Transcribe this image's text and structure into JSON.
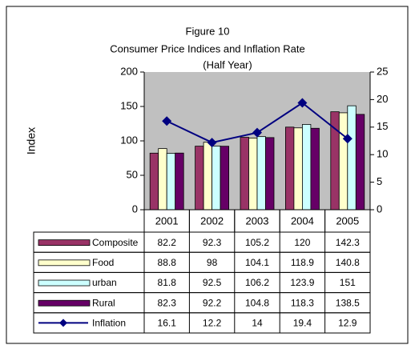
{
  "chart_data": {
    "type": "bar",
    "title": "Figure 10",
    "subtitle": "Consumer Price Indices and Inflation Rate",
    "period_label": "(Half Year)",
    "ylabel": "Index",
    "categories": [
      "2001",
      "2002",
      "2003",
      "2004",
      "2005"
    ],
    "series": [
      {
        "name": "Composite",
        "color": "#993366",
        "values": [
          82.2,
          92.3,
          105.2,
          120,
          142.3
        ]
      },
      {
        "name": "Food",
        "color": "#ffffcc",
        "values": [
          88.8,
          98,
          104.1,
          118.9,
          140.8
        ]
      },
      {
        "name": "urban",
        "color": "#ccffff",
        "values": [
          81.8,
          92.5,
          106.2,
          123.9,
          151
        ]
      },
      {
        "name": "Rural",
        "color": "#660066",
        "values": [
          82.3,
          92.2,
          104.8,
          118.3,
          138.5
        ]
      },
      {
        "name": "Inflation",
        "color": "#000080",
        "type": "line",
        "axis": "y2",
        "values": [
          16.1,
          12.2,
          14,
          19.4,
          12.9
        ]
      }
    ],
    "ylim": [
      0,
      200
    ],
    "yticks": [
      0,
      50,
      100,
      150,
      200
    ],
    "y2lim": [
      0,
      25
    ],
    "y2ticks": [
      0,
      5,
      10,
      15,
      20,
      25
    ],
    "plot_background": "#c0c0c0",
    "data_table": true
  }
}
